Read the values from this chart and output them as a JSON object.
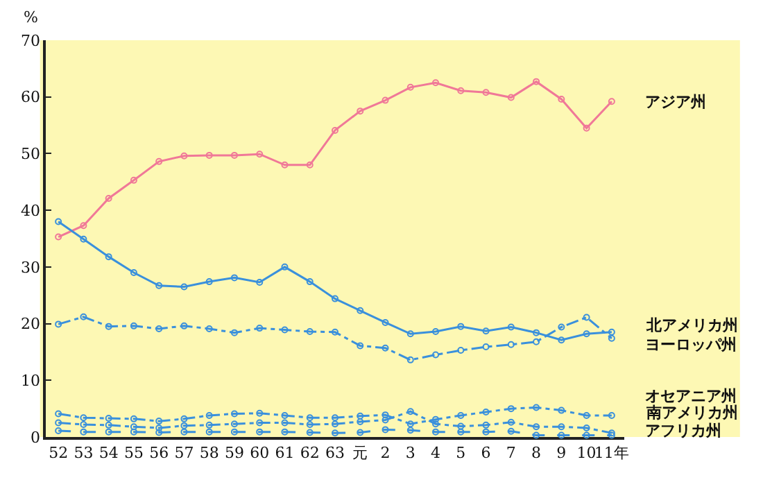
{
  "chart_data": {
    "type": "line",
    "ylabel": "%",
    "categories": [
      "52",
      "53",
      "54",
      "55",
      "56",
      "57",
      "58",
      "59",
      "60",
      "61",
      "62",
      "63",
      "元",
      "2",
      "3",
      "4",
      "5",
      "6",
      "7",
      "8",
      "9",
      "10",
      "11年"
    ],
    "ylim": [
      0,
      70
    ],
    "yticks": [
      0,
      10,
      20,
      30,
      40,
      50,
      60,
      70
    ],
    "grid": false,
    "legend": false,
    "marker": "circle",
    "series": [
      {
        "name": "アジア州",
        "color": "#f07898",
        "line_style": "solid",
        "values": [
          35.3,
          37.3,
          42.1,
          45.3,
          48.6,
          49.6,
          49.7,
          49.7,
          49.9,
          48.0,
          48.0,
          54.1,
          57.5,
          59.4,
          61.7,
          62.5,
          61.1,
          60.8,
          59.9,
          62.7,
          59.6,
          54.5,
          59.2
        ]
      },
      {
        "name": "北アメリカ州",
        "color": "#3a90dc",
        "line_style": "solid",
        "values": [
          38.0,
          34.9,
          31.8,
          29.0,
          26.7,
          26.5,
          27.4,
          28.1,
          27.3,
          30.0,
          27.4,
          24.4,
          22.3,
          20.2,
          18.2,
          18.6,
          19.5,
          18.7,
          19.4,
          18.4,
          17.1,
          18.2,
          18.5
        ]
      },
      {
        "name": "ヨーロッパ州",
        "color": "#3a90dc",
        "line_style": "dashed",
        "values": [
          19.9,
          21.2,
          19.5,
          19.6,
          19.1,
          19.6,
          19.1,
          18.4,
          19.2,
          18.9,
          18.6,
          18.5,
          16.1,
          15.7,
          13.6,
          14.5,
          15.3,
          15.9,
          16.3,
          16.8,
          19.4,
          21.1,
          17.4
        ]
      },
      {
        "name": "オセアニア州",
        "color": "#3a90dc",
        "line_style": "dashed",
        "values": [
          4.1,
          3.4,
          3.3,
          3.2,
          2.8,
          3.2,
          3.8,
          4.1,
          4.2,
          3.8,
          3.4,
          3.4,
          3.7,
          3.9,
          2.3,
          3.1,
          3.8,
          4.4,
          5.0,
          5.2,
          4.7,
          3.8,
          3.8
        ]
      },
      {
        "name": "南アメリカ州",
        "color": "#3a90dc",
        "line_style": "dashed",
        "values": [
          2.5,
          2.2,
          2.1,
          1.8,
          1.6,
          2.0,
          2.1,
          2.3,
          2.5,
          2.5,
          2.2,
          2.3,
          2.7,
          3.0,
          4.5,
          2.3,
          1.9,
          2.1,
          2.6,
          1.8,
          1.8,
          1.6,
          0.7
        ]
      },
      {
        "name": "アフリカ州",
        "color": "#3a90dc",
        "line_style": "dotted",
        "values": [
          1.1,
          0.9,
          0.9,
          0.9,
          0.8,
          0.9,
          0.9,
          0.9,
          0.9,
          0.9,
          0.8,
          0.7,
          0.8,
          1.3,
          1.2,
          0.9,
          0.9,
          0.9,
          1.0,
          0.3,
          0.3,
          0.3,
          0.3
        ]
      }
    ]
  }
}
